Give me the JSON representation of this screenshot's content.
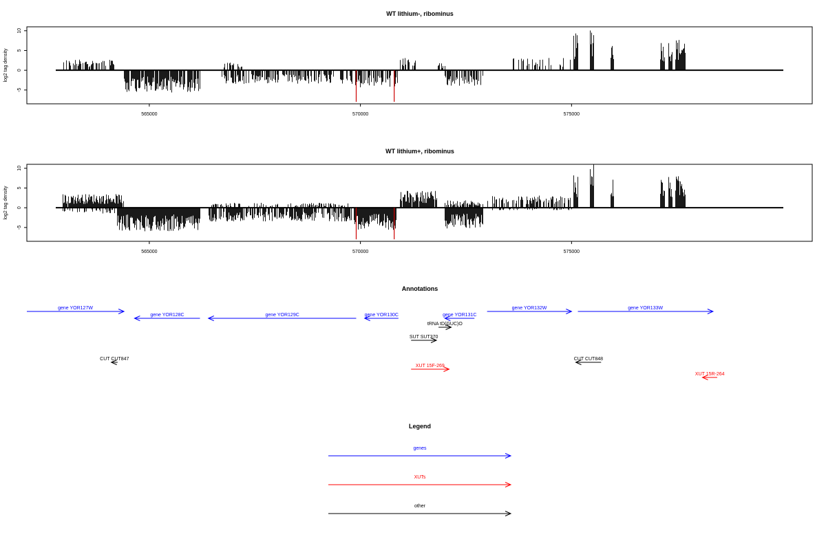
{
  "chart_data": [
    {
      "type": "bar",
      "title": "WT lithium-, ribominus",
      "ylabel": "log2 tag density",
      "xlim": [
        562100,
        580700
      ],
      "ylim": [
        -8.5,
        11
      ],
      "yticks": [
        -5,
        0,
        5,
        10
      ],
      "xticks": [
        565000,
        570000,
        575000
      ],
      "xtick_labels": [
        "565000",
        "570000",
        "575000"
      ],
      "grid": false,
      "highlight_color": "#cc0000",
      "highlights": [
        {
          "x": 569900,
          "value": -8
        },
        {
          "x": 570800,
          "value": -8
        }
      ],
      "plus_strand": [
        {
          "x_start": 562950,
          "x_end": 564200,
          "level": 2.2,
          "density": 0.55
        },
        {
          "x_start": 566700,
          "x_end": 567200,
          "level": 2.0,
          "density": 0.5
        },
        {
          "x_start": 570950,
          "x_end": 571300,
          "level": 2.5,
          "density": 0.5
        },
        {
          "x_start": 571800,
          "x_end": 572000,
          "level": 1.5,
          "density": 0.5
        },
        {
          "x_start": 573600,
          "x_end": 575000,
          "level": 2.5,
          "density": 0.35
        },
        {
          "x_start": 575050,
          "x_end": 575150,
          "level": 7.5,
          "density": 1.0
        },
        {
          "x_start": 575450,
          "x_end": 575530,
          "level": 9.5,
          "density": 1.0
        },
        {
          "x_start": 575930,
          "x_end": 576000,
          "level": 6.5,
          "density": 1.0
        },
        {
          "x_start": 577100,
          "x_end": 577200,
          "level": 6.2,
          "density": 1.0
        },
        {
          "x_start": 577300,
          "x_end": 577380,
          "level": 6.3,
          "density": 1.0
        },
        {
          "x_start": 577460,
          "x_end": 577700,
          "level": 6.5,
          "density": 1.0
        }
      ],
      "minus_strand": [
        {
          "x_start": 564400,
          "x_end": 566200,
          "level": -4.5,
          "density": 0.9
        },
        {
          "x_start": 566700,
          "x_end": 569800,
          "level": -2.8,
          "density": 0.55
        },
        {
          "x_start": 569850,
          "x_end": 570900,
          "level": -3.5,
          "density": 0.6
        },
        {
          "x_start": 572000,
          "x_end": 572900,
          "level": -3.2,
          "density": 0.6
        }
      ]
    },
    {
      "type": "bar",
      "title": "WT lithium+, ribominus",
      "ylabel": "log2 tag density",
      "xlim": [
        562100,
        580700
      ],
      "ylim": [
        -8.5,
        11
      ],
      "yticks": [
        -5,
        0,
        5,
        10
      ],
      "xticks": [
        565000,
        570000,
        575000
      ],
      "xtick_labels": [
        "565000",
        "570000",
        "575000"
      ],
      "grid": false,
      "highlight_color": "#cc0000",
      "highlights": [
        {
          "x": 569900,
          "value": -8
        },
        {
          "x": 570800,
          "value": -8
        }
      ],
      "plus_strand": [
        {
          "x_start": 562950,
          "x_end": 564400,
          "level": 2.8,
          "density": 0.95
        },
        {
          "x_start": 566400,
          "x_end": 569800,
          "level": 1.0,
          "density": 0.35
        },
        {
          "x_start": 570950,
          "x_end": 571800,
          "level": 3.5,
          "density": 0.95
        },
        {
          "x_start": 572000,
          "x_end": 572900,
          "level": 1.5,
          "density": 0.7
        },
        {
          "x_start": 573000,
          "x_end": 575000,
          "level": 2.5,
          "density": 0.55
        },
        {
          "x_start": 575050,
          "x_end": 575150,
          "level": 7.5,
          "density": 1.0
        },
        {
          "x_start": 575450,
          "x_end": 575530,
          "level": 9.5,
          "density": 1.0
        },
        {
          "x_start": 575930,
          "x_end": 576000,
          "level": 6.5,
          "density": 1.0
        },
        {
          "x_start": 577100,
          "x_end": 577200,
          "level": 6.2,
          "density": 1.0
        },
        {
          "x_start": 577300,
          "x_end": 577380,
          "level": 6.3,
          "density": 1.0
        },
        {
          "x_start": 577460,
          "x_end": 577700,
          "level": 6.5,
          "density": 1.0
        }
      ],
      "minus_strand": [
        {
          "x_start": 562950,
          "x_end": 564200,
          "level": -1.2,
          "density": 0.35
        },
        {
          "x_start": 564250,
          "x_end": 566200,
          "level": -4.8,
          "density": 1.0
        },
        {
          "x_start": 566400,
          "x_end": 569800,
          "level": -2.8,
          "density": 0.8
        },
        {
          "x_start": 569850,
          "x_end": 570850,
          "level": -4.5,
          "density": 1.0
        },
        {
          "x_start": 572000,
          "x_end": 572900,
          "level": -4.2,
          "density": 1.0
        },
        {
          "x_start": 573000,
          "x_end": 575000,
          "level": -0.5,
          "density": 0.2
        }
      ]
    }
  ],
  "annotations": {
    "title": "Annotations",
    "features": [
      {
        "label": "gene YOR127W",
        "category": "genes",
        "strand": "+",
        "start": 562100,
        "end": 564400,
        "track": 0
      },
      {
        "label": "gene YOR128C",
        "category": "genes",
        "strand": "-",
        "start": 564650,
        "end": 566200,
        "track": 1
      },
      {
        "label": "gene YOR129C",
        "category": "genes",
        "strand": "-",
        "start": 566400,
        "end": 569900,
        "track": 1
      },
      {
        "label": "gene YOR130C",
        "category": "genes",
        "strand": "-",
        "start": 570100,
        "end": 570900,
        "track": 1
      },
      {
        "label": "gene YOR131C",
        "category": "genes",
        "strand": "-",
        "start": 572000,
        "end": 572700,
        "track": 1
      },
      {
        "label": "gene YOR132W",
        "category": "genes",
        "strand": "+",
        "start": 573000,
        "end": 575000,
        "track": 0
      },
      {
        "label": "gene YOR133W",
        "category": "genes",
        "strand": "+",
        "start": 575150,
        "end": 578350,
        "track": 0
      },
      {
        "label": "tRNA tD(GUC)O",
        "category": "other",
        "strand": "+",
        "start": 571850,
        "end": 572150,
        "track": 2
      },
      {
        "label": "SUT SUT370",
        "category": "other",
        "strand": "+",
        "start": 571200,
        "end": 571800,
        "track": 3
      },
      {
        "label": "CUT CUT847",
        "category": "other",
        "strand": "-",
        "start": 564100,
        "end": 564250,
        "track": 4
      },
      {
        "label": "CUT CUT848",
        "category": "other",
        "strand": "-",
        "start": 575100,
        "end": 575700,
        "track": 4
      },
      {
        "label": "XUT 15F-269",
        "category": "XUTs",
        "strand": "+",
        "start": 571200,
        "end": 572100,
        "track": 5
      },
      {
        "label": "XUT 15R-264",
        "category": "XUTs",
        "strand": "-",
        "start": 578100,
        "end": 578450,
        "track": 6
      }
    ]
  },
  "legend": {
    "title": "Legend",
    "items": [
      {
        "label": "genes",
        "color": "#0000ff"
      },
      {
        "label": "XUTs",
        "color": "#ff0000"
      },
      {
        "label": "other",
        "color": "#000000"
      }
    ]
  }
}
